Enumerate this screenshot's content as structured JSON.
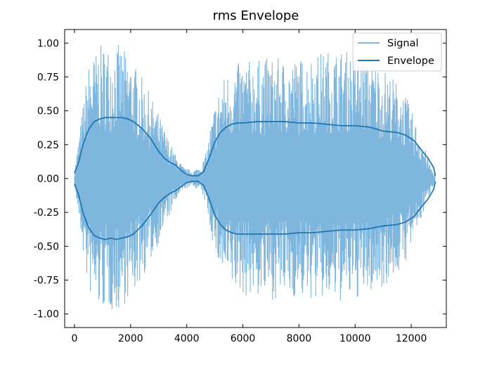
{
  "chart_data": {
    "type": "line",
    "title": "rms Envelope",
    "xlabel": "",
    "ylabel": "",
    "xlim": [
      -350,
      13250
    ],
    "ylim": [
      -1.1,
      1.1
    ],
    "grid": false,
    "legend_position": "top-right",
    "x_ticks": [
      0,
      2000,
      4000,
      6000,
      8000,
      10000,
      12000
    ],
    "x_tick_labels": [
      "0",
      "2000",
      "4000",
      "6000",
      "8000",
      "10000",
      "12000"
    ],
    "y_ticks": [
      1.0,
      0.75,
      0.5,
      0.25,
      0.0,
      -0.25,
      -0.5,
      -0.75,
      -1.0
    ],
    "y_tick_labels": [
      "1.00",
      "0.75",
      "0.50",
      "0.25",
      "0.00",
      "-0.25",
      "-0.50",
      "-0.75",
      "-1.00"
    ],
    "series": [
      {
        "name": "Signal",
        "style": "filled oscillation",
        "color": "#7fb6de",
        "x": [
          0,
          150,
          300,
          500,
          700,
          900,
          1100,
          1300,
          1500,
          1700,
          1900,
          2100,
          2400,
          2700,
          3000,
          3300,
          3600,
          3900,
          4200,
          4500,
          4700,
          4850,
          5000,
          5200,
          5400,
          5700,
          6000,
          6500,
          7000,
          7500,
          8000,
          8500,
          9000,
          9500,
          10000,
          10500,
          11000,
          11500,
          11800,
          12100,
          12400,
          12650,
          12850
        ],
        "upper": [
          0.05,
          0.3,
          0.55,
          0.85,
          0.92,
          0.98,
          1.0,
          0.98,
          1.0,
          0.97,
          0.92,
          0.86,
          0.75,
          0.62,
          0.48,
          0.32,
          0.18,
          0.08,
          0.06,
          0.09,
          0.2,
          0.4,
          0.55,
          0.7,
          0.78,
          0.84,
          0.87,
          0.88,
          0.9,
          0.88,
          0.89,
          0.92,
          0.95,
          0.95,
          0.94,
          0.9,
          0.82,
          0.72,
          0.62,
          0.45,
          0.28,
          0.12,
          0.02
        ],
        "lower": [
          -0.05,
          -0.3,
          -0.55,
          -0.85,
          -0.92,
          -0.98,
          -0.97,
          -0.98,
          -1.0,
          -0.95,
          -0.9,
          -0.86,
          -0.75,
          -0.62,
          -0.48,
          -0.32,
          -0.18,
          -0.08,
          -0.06,
          -0.09,
          -0.2,
          -0.4,
          -0.55,
          -0.7,
          -0.78,
          -0.84,
          -0.87,
          -0.88,
          -0.9,
          -0.88,
          -0.89,
          -0.9,
          -0.92,
          -0.92,
          -0.9,
          -0.86,
          -0.8,
          -0.72,
          -0.62,
          -0.45,
          -0.28,
          -0.12,
          -0.02
        ]
      },
      {
        "name": "Envelope",
        "style": "line",
        "color": "#1f77b4",
        "x": [
          0,
          150,
          300,
          500,
          700,
          900,
          1100,
          1300,
          1500,
          1700,
          1900,
          2100,
          2400,
          2700,
          3000,
          3200,
          3400,
          3600,
          3800,
          4000,
          4200,
          4400,
          4600,
          4800,
          5000,
          5200,
          5400,
          5600,
          5800,
          6000,
          6500,
          7000,
          7500,
          8000,
          8500,
          9000,
          9500,
          10000,
          10500,
          11000,
          11500,
          11800,
          12100,
          12400,
          12600,
          12800,
          12860
        ],
        "upper": [
          0.04,
          0.12,
          0.25,
          0.36,
          0.42,
          0.44,
          0.45,
          0.45,
          0.45,
          0.45,
          0.44,
          0.42,
          0.37,
          0.3,
          0.2,
          0.15,
          0.12,
          0.1,
          0.06,
          0.03,
          0.02,
          0.02,
          0.05,
          0.15,
          0.27,
          0.34,
          0.38,
          0.4,
          0.41,
          0.41,
          0.42,
          0.42,
          0.42,
          0.41,
          0.41,
          0.4,
          0.39,
          0.39,
          0.38,
          0.35,
          0.34,
          0.32,
          0.28,
          0.2,
          0.15,
          0.08,
          0.02
        ],
        "lower": [
          -0.04,
          -0.12,
          -0.25,
          -0.36,
          -0.42,
          -0.44,
          -0.45,
          -0.44,
          -0.45,
          -0.44,
          -0.43,
          -0.41,
          -0.35,
          -0.27,
          -0.18,
          -0.14,
          -0.11,
          -0.09,
          -0.06,
          -0.03,
          -0.02,
          -0.02,
          -0.05,
          -0.15,
          -0.27,
          -0.34,
          -0.38,
          -0.4,
          -0.41,
          -0.41,
          -0.41,
          -0.41,
          -0.41,
          -0.4,
          -0.4,
          -0.39,
          -0.38,
          -0.38,
          -0.37,
          -0.35,
          -0.34,
          -0.32,
          -0.28,
          -0.2,
          -0.15,
          -0.08,
          -0.02
        ]
      }
    ]
  }
}
